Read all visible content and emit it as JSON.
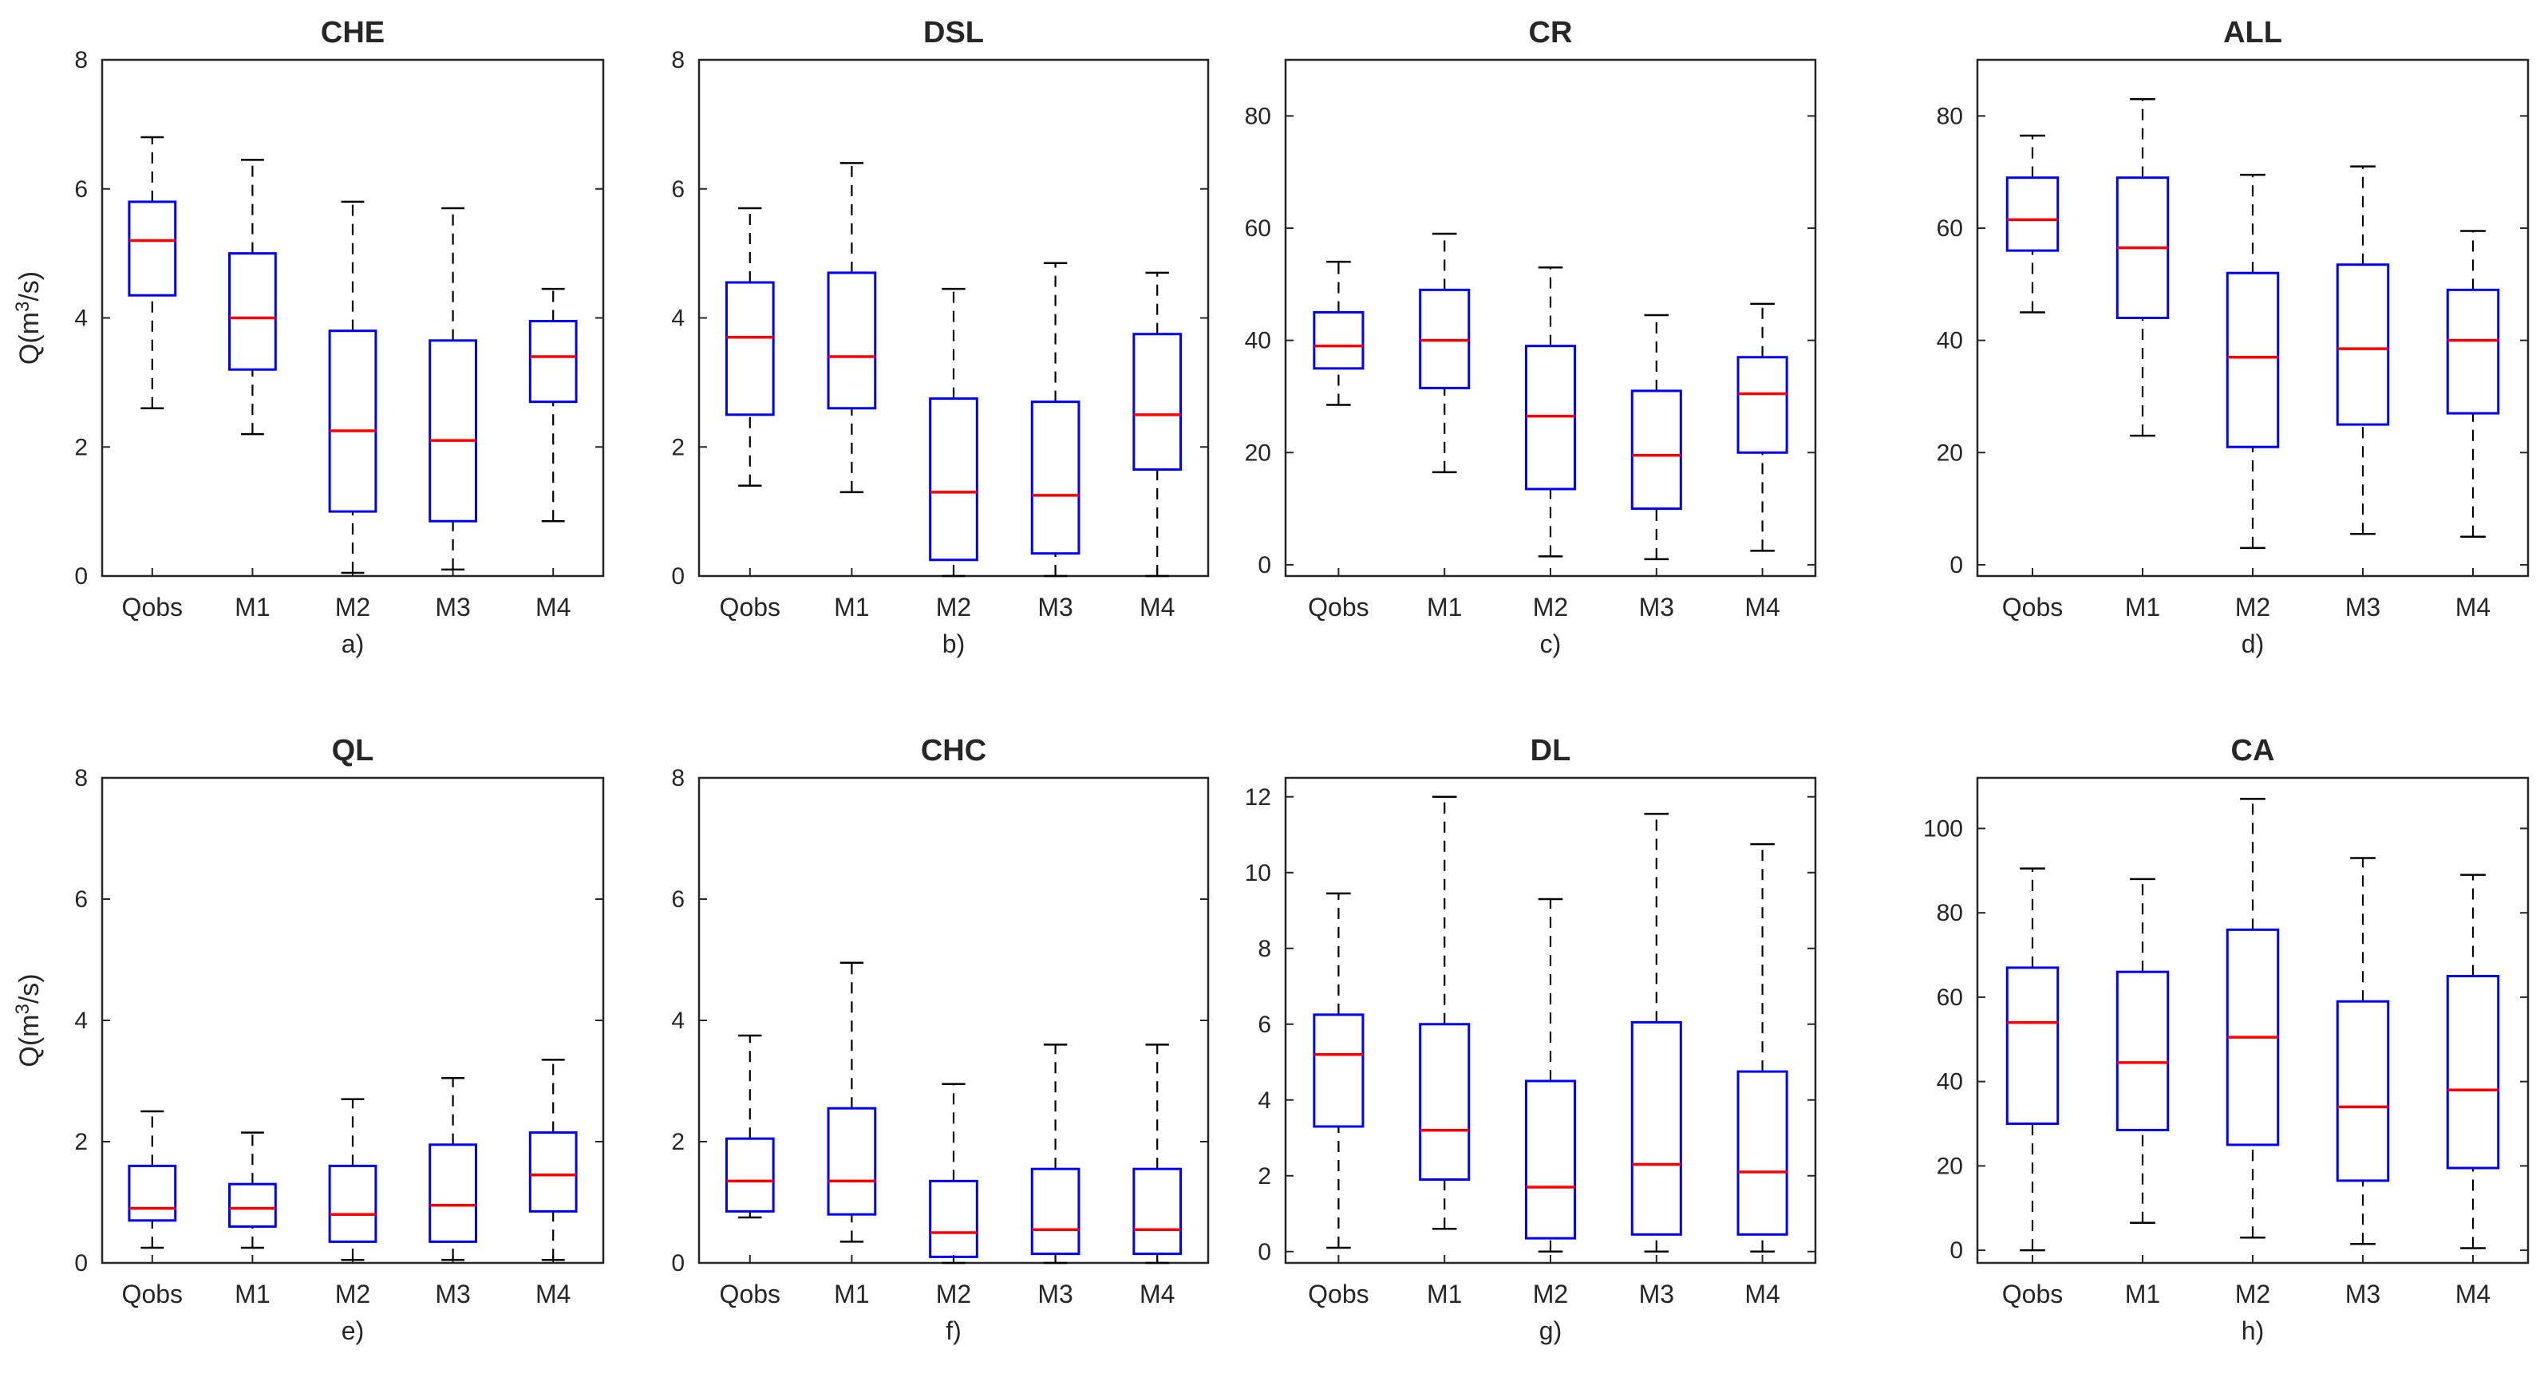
{
  "figure": {
    "ylabel_prefix": "Q(m",
    "ylabel_sup": "3",
    "ylabel_suffix": "/s)",
    "colors": {
      "box": "#0000ff",
      "median": "#ff0000",
      "whisker": "#000000",
      "axis": "#262626",
      "background": "#ffffff"
    }
  },
  "chart_data": [
    {
      "type": "boxplot",
      "title": "CHE",
      "caption": "a)",
      "ylabel": "Q(m3/s)",
      "categories": [
        "Qobs",
        "M1",
        "M2",
        "M3",
        "M4"
      ],
      "ylim": [
        0,
        8
      ],
      "yticks": [
        "0",
        "2",
        "4",
        "6",
        "8"
      ],
      "boxes": [
        {
          "min": 2.6,
          "q1": 4.35,
          "median": 5.2,
          "q3": 5.8,
          "max": 6.8
        },
        {
          "min": 2.2,
          "q1": 3.2,
          "median": 4.0,
          "q3": 5.0,
          "max": 6.45
        },
        {
          "min": 0.05,
          "q1": 1.0,
          "median": 2.25,
          "q3": 3.8,
          "max": 5.8
        },
        {
          "min": 0.1,
          "q1": 0.85,
          "median": 2.1,
          "q3": 3.65,
          "max": 5.7
        },
        {
          "min": 0.85,
          "q1": 2.7,
          "median": 3.4,
          "q3": 3.95,
          "max": 4.45
        }
      ]
    },
    {
      "type": "boxplot",
      "title": "DSL",
      "caption": "b)",
      "ylabel": "",
      "categories": [
        "Qobs",
        "M1",
        "M2",
        "M3",
        "M4"
      ],
      "ylim": [
        0,
        8
      ],
      "yticks": [
        "0",
        "2",
        "4",
        "6",
        "8"
      ],
      "boxes": [
        {
          "min": 1.4,
          "q1": 2.5,
          "median": 3.7,
          "q3": 4.55,
          "max": 5.7
        },
        {
          "min": 1.3,
          "q1": 2.6,
          "median": 3.4,
          "q3": 4.7,
          "max": 6.4
        },
        {
          "min": 0.0,
          "q1": 0.25,
          "median": 1.3,
          "q3": 2.75,
          "max": 4.45
        },
        {
          "min": 0.0,
          "q1": 0.35,
          "median": 1.25,
          "q3": 2.7,
          "max": 4.85
        },
        {
          "min": 0.0,
          "q1": 1.65,
          "median": 2.5,
          "q3": 3.75,
          "max": 4.7
        }
      ]
    },
    {
      "type": "boxplot",
      "title": "CR",
      "caption": "c)",
      "ylabel": "",
      "categories": [
        "Qobs",
        "M1",
        "M2",
        "M3",
        "M4"
      ],
      "ylim": [
        -2,
        90
      ],
      "yticks": [
        "0",
        "20",
        "40",
        "60",
        "80"
      ],
      "boxes": [
        {
          "min": 28.5,
          "q1": 35.0,
          "median": 39.0,
          "q3": 45.0,
          "max": 54.0
        },
        {
          "min": 16.5,
          "q1": 31.5,
          "median": 40.0,
          "q3": 49.0,
          "max": 59.0
        },
        {
          "min": 1.5,
          "q1": 13.5,
          "median": 26.5,
          "q3": 39.0,
          "max": 53.0
        },
        {
          "min": 1.0,
          "q1": 10.0,
          "median": 19.5,
          "q3": 31.0,
          "max": 44.5
        },
        {
          "min": 2.5,
          "q1": 20.0,
          "median": 30.5,
          "q3": 37.0,
          "max": 46.5
        }
      ]
    },
    {
      "type": "boxplot",
      "title": "ALL",
      "caption": "d)",
      "ylabel": "",
      "categories": [
        "Qobs",
        "M1",
        "M2",
        "M3",
        "M4"
      ],
      "ylim": [
        -2,
        90
      ],
      "yticks": [
        "0",
        "20",
        "40",
        "60",
        "80"
      ],
      "boxes": [
        {
          "min": 45.0,
          "q1": 56.0,
          "median": 61.5,
          "q3": 69.0,
          "max": 76.5
        },
        {
          "min": 23.0,
          "q1": 44.0,
          "median": 56.5,
          "q3": 69.0,
          "max": 83.0
        },
        {
          "min": 3.0,
          "q1": 21.0,
          "median": 37.0,
          "q3": 52.0,
          "max": 69.5
        },
        {
          "min": 5.5,
          "q1": 25.0,
          "median": 38.5,
          "q3": 53.5,
          "max": 71.0
        },
        {
          "min": 5.0,
          "q1": 27.0,
          "median": 40.0,
          "q3": 49.0,
          "max": 59.5
        }
      ]
    },
    {
      "type": "boxplot",
      "title": "QL",
      "caption": "e)",
      "ylabel": "Q(m3/s)",
      "categories": [
        "Qobs",
        "M1",
        "M2",
        "M3",
        "M4"
      ],
      "ylim": [
        0,
        8
      ],
      "yticks": [
        "0",
        "2",
        "4",
        "6",
        "8"
      ],
      "boxes": [
        {
          "min": 0.25,
          "q1": 0.7,
          "median": 0.9,
          "q3": 1.6,
          "max": 2.5
        },
        {
          "min": 0.25,
          "q1": 0.6,
          "median": 0.9,
          "q3": 1.3,
          "max": 2.15
        },
        {
          "min": 0.05,
          "q1": 0.35,
          "median": 0.8,
          "q3": 1.6,
          "max": 2.7
        },
        {
          "min": 0.05,
          "q1": 0.35,
          "median": 0.95,
          "q3": 1.95,
          "max": 3.05
        },
        {
          "min": 0.05,
          "q1": 0.85,
          "median": 1.45,
          "q3": 2.15,
          "max": 3.35
        }
      ]
    },
    {
      "type": "boxplot",
      "title": "CHC",
      "caption": "f)",
      "ylabel": "",
      "categories": [
        "Qobs",
        "M1",
        "M2",
        "M3",
        "M4"
      ],
      "ylim": [
        0,
        8
      ],
      "yticks": [
        "0",
        "2",
        "4",
        "6",
        "8"
      ],
      "boxes": [
        {
          "min": 0.75,
          "q1": 0.85,
          "median": 1.35,
          "q3": 2.05,
          "max": 3.75
        },
        {
          "min": 0.35,
          "q1": 0.8,
          "median": 1.35,
          "q3": 2.55,
          "max": 4.95
        },
        {
          "min": 0.0,
          "q1": 0.1,
          "median": 0.5,
          "q3": 1.35,
          "max": 2.95
        },
        {
          "min": 0.0,
          "q1": 0.15,
          "median": 0.55,
          "q3": 1.55,
          "max": 3.6
        },
        {
          "min": 0.0,
          "q1": 0.15,
          "median": 0.55,
          "q3": 1.55,
          "max": 3.6
        }
      ]
    },
    {
      "type": "boxplot",
      "title": "DL",
      "caption": "g)",
      "ylabel": "",
      "categories": [
        "Qobs",
        "M1",
        "M2",
        "M3",
        "M4"
      ],
      "ylim": [
        -0.3,
        12.5
      ],
      "yticks": [
        "0",
        "2",
        "4",
        "6",
        "8",
        "10",
        "12"
      ],
      "boxes": [
        {
          "min": 0.1,
          "q1": 3.3,
          "median": 5.2,
          "q3": 6.25,
          "max": 9.45
        },
        {
          "min": 0.6,
          "q1": 1.9,
          "median": 3.2,
          "q3": 6.0,
          "max": 12.0
        },
        {
          "min": 0.0,
          "q1": 0.35,
          "median": 1.7,
          "q3": 4.5,
          "max": 9.3
        },
        {
          "min": 0.0,
          "q1": 0.45,
          "median": 2.3,
          "q3": 6.05,
          "max": 11.55
        },
        {
          "min": 0.0,
          "q1": 0.45,
          "median": 2.1,
          "q3": 4.75,
          "max": 10.75
        }
      ]
    },
    {
      "type": "boxplot",
      "title": "CA",
      "caption": "h)",
      "ylabel": "",
      "categories": [
        "Qobs",
        "M1",
        "M2",
        "M3",
        "M4"
      ],
      "ylim": [
        -3,
        112
      ],
      "yticks": [
        "0",
        "20",
        "40",
        "60",
        "80",
        "100"
      ],
      "boxes": [
        {
          "min": 0.0,
          "q1": 30.0,
          "median": 54.0,
          "q3": 67.0,
          "max": 90.5
        },
        {
          "min": 6.5,
          "q1": 28.5,
          "median": 44.5,
          "q3": 66.0,
          "max": 88.0
        },
        {
          "min": 3.0,
          "q1": 25.0,
          "median": 50.5,
          "q3": 76.0,
          "max": 107.0
        },
        {
          "min": 1.5,
          "q1": 16.5,
          "median": 34.0,
          "q3": 59.0,
          "max": 93.0
        },
        {
          "min": 0.5,
          "q1": 19.5,
          "median": 38.0,
          "q3": 65.0,
          "max": 89.0
        }
      ]
    }
  ]
}
